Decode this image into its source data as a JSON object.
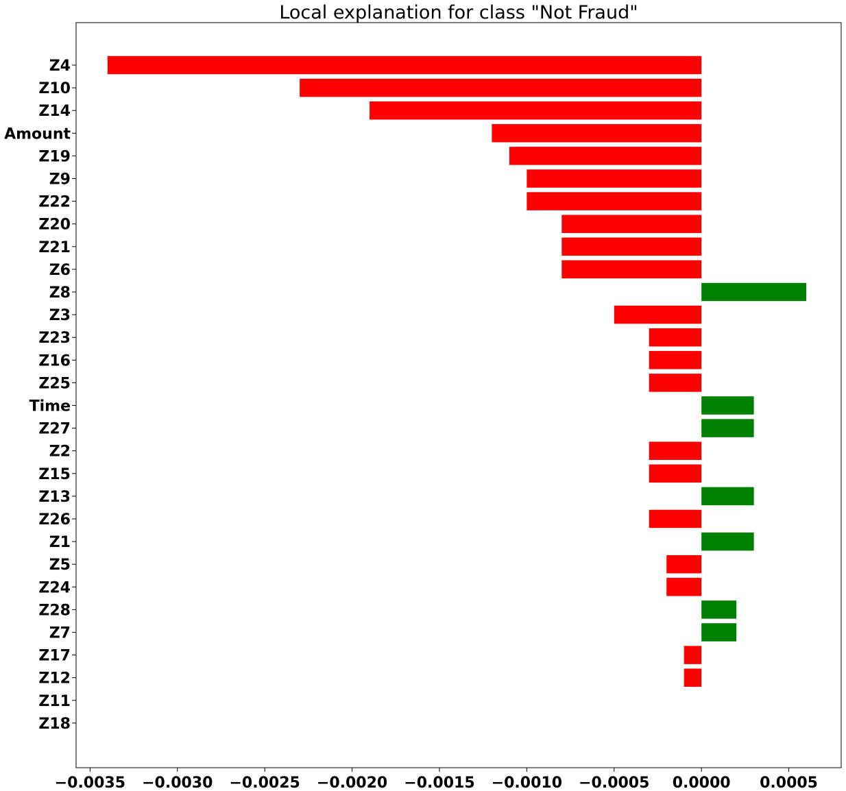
{
  "chart_data": {
    "type": "bar",
    "orientation": "horizontal",
    "title": "Local explanation for class \"Not Fraud\"",
    "xlabel": "",
    "ylabel": "",
    "xlim": [
      -0.00358,
      0.0008
    ],
    "grid": false,
    "colors": {
      "positive": "#008000",
      "negative": "#ff0000"
    },
    "x_ticks": [
      -0.0035,
      -0.003,
      -0.0025,
      -0.002,
      -0.0015,
      -0.001,
      -0.0005,
      0.0,
      0.0005
    ],
    "x_tick_labels": [
      "−0.0035",
      "−0.0030",
      "−0.0025",
      "−0.0020",
      "−0.0015",
      "−0.0010",
      "−0.0005",
      "0.0000",
      "0.0005"
    ],
    "categories": [
      "Z4",
      "Z10",
      "Z14",
      "Amount",
      "Z19",
      "Z9",
      "Z22",
      "Z20",
      "Z21",
      "Z6",
      "Z8",
      "Z3",
      "Z23",
      "Z16",
      "Z25",
      "Time",
      "Z27",
      "Z2",
      "Z15",
      "Z13",
      "Z26",
      "Z1",
      "Z5",
      "Z24",
      "Z28",
      "Z7",
      "Z17",
      "Z12",
      "Z11",
      "Z18"
    ],
    "values": [
      -0.0034,
      -0.0023,
      -0.0019,
      -0.0012,
      -0.0011,
      -0.001,
      -0.001,
      -0.0008,
      -0.0008,
      -0.0008,
      0.0006,
      -0.0005,
      -0.0003,
      -0.0003,
      -0.0003,
      0.0003,
      0.0003,
      -0.0003,
      -0.0003,
      0.0003,
      -0.0003,
      0.0003,
      -0.0002,
      -0.0002,
      0.0002,
      0.0002,
      -0.0001,
      -0.0001,
      0.0,
      0.0
    ]
  }
}
